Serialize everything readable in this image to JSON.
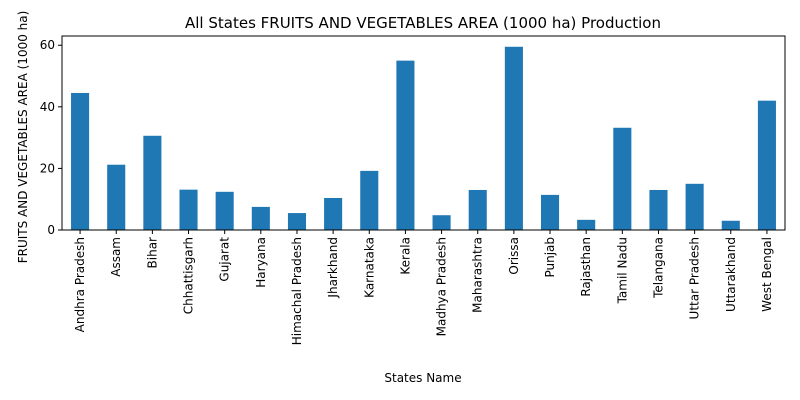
{
  "chart_data": {
    "type": "bar",
    "title": "All States FRUITS AND VEGETABLES AREA (1000 ha) Production",
    "xlabel": "States Name",
    "ylabel": "FRUITS AND VEGETABLES AREA (1000 ha)",
    "ylim": [
      0,
      63
    ],
    "yticks": [
      0,
      20,
      40,
      60
    ],
    "grid": false,
    "legend": "none",
    "bar_color": "#1f77b4",
    "categories": [
      "Andhra Pradesh",
      "Assam",
      "Bihar",
      "Chhattisgarh",
      "Gujarat",
      "Haryana",
      "Himachal Pradesh",
      "Jharkhand",
      "Karnataka",
      "Kerala",
      "Madhya Pradesh",
      "Maharashtra",
      "Orissa",
      "Punjab",
      "Rajasthan",
      "Tamil Nadu",
      "Telangana",
      "Uttar Pradesh",
      "Uttarakhand",
      "West Bengal"
    ],
    "values": [
      44.5,
      21.2,
      30.6,
      13.1,
      12.4,
      7.5,
      5.5,
      10.4,
      19.2,
      55.0,
      4.8,
      13.0,
      59.5,
      11.4,
      3.3,
      33.2,
      13.0,
      15.0,
      3.0,
      42.0
    ]
  }
}
